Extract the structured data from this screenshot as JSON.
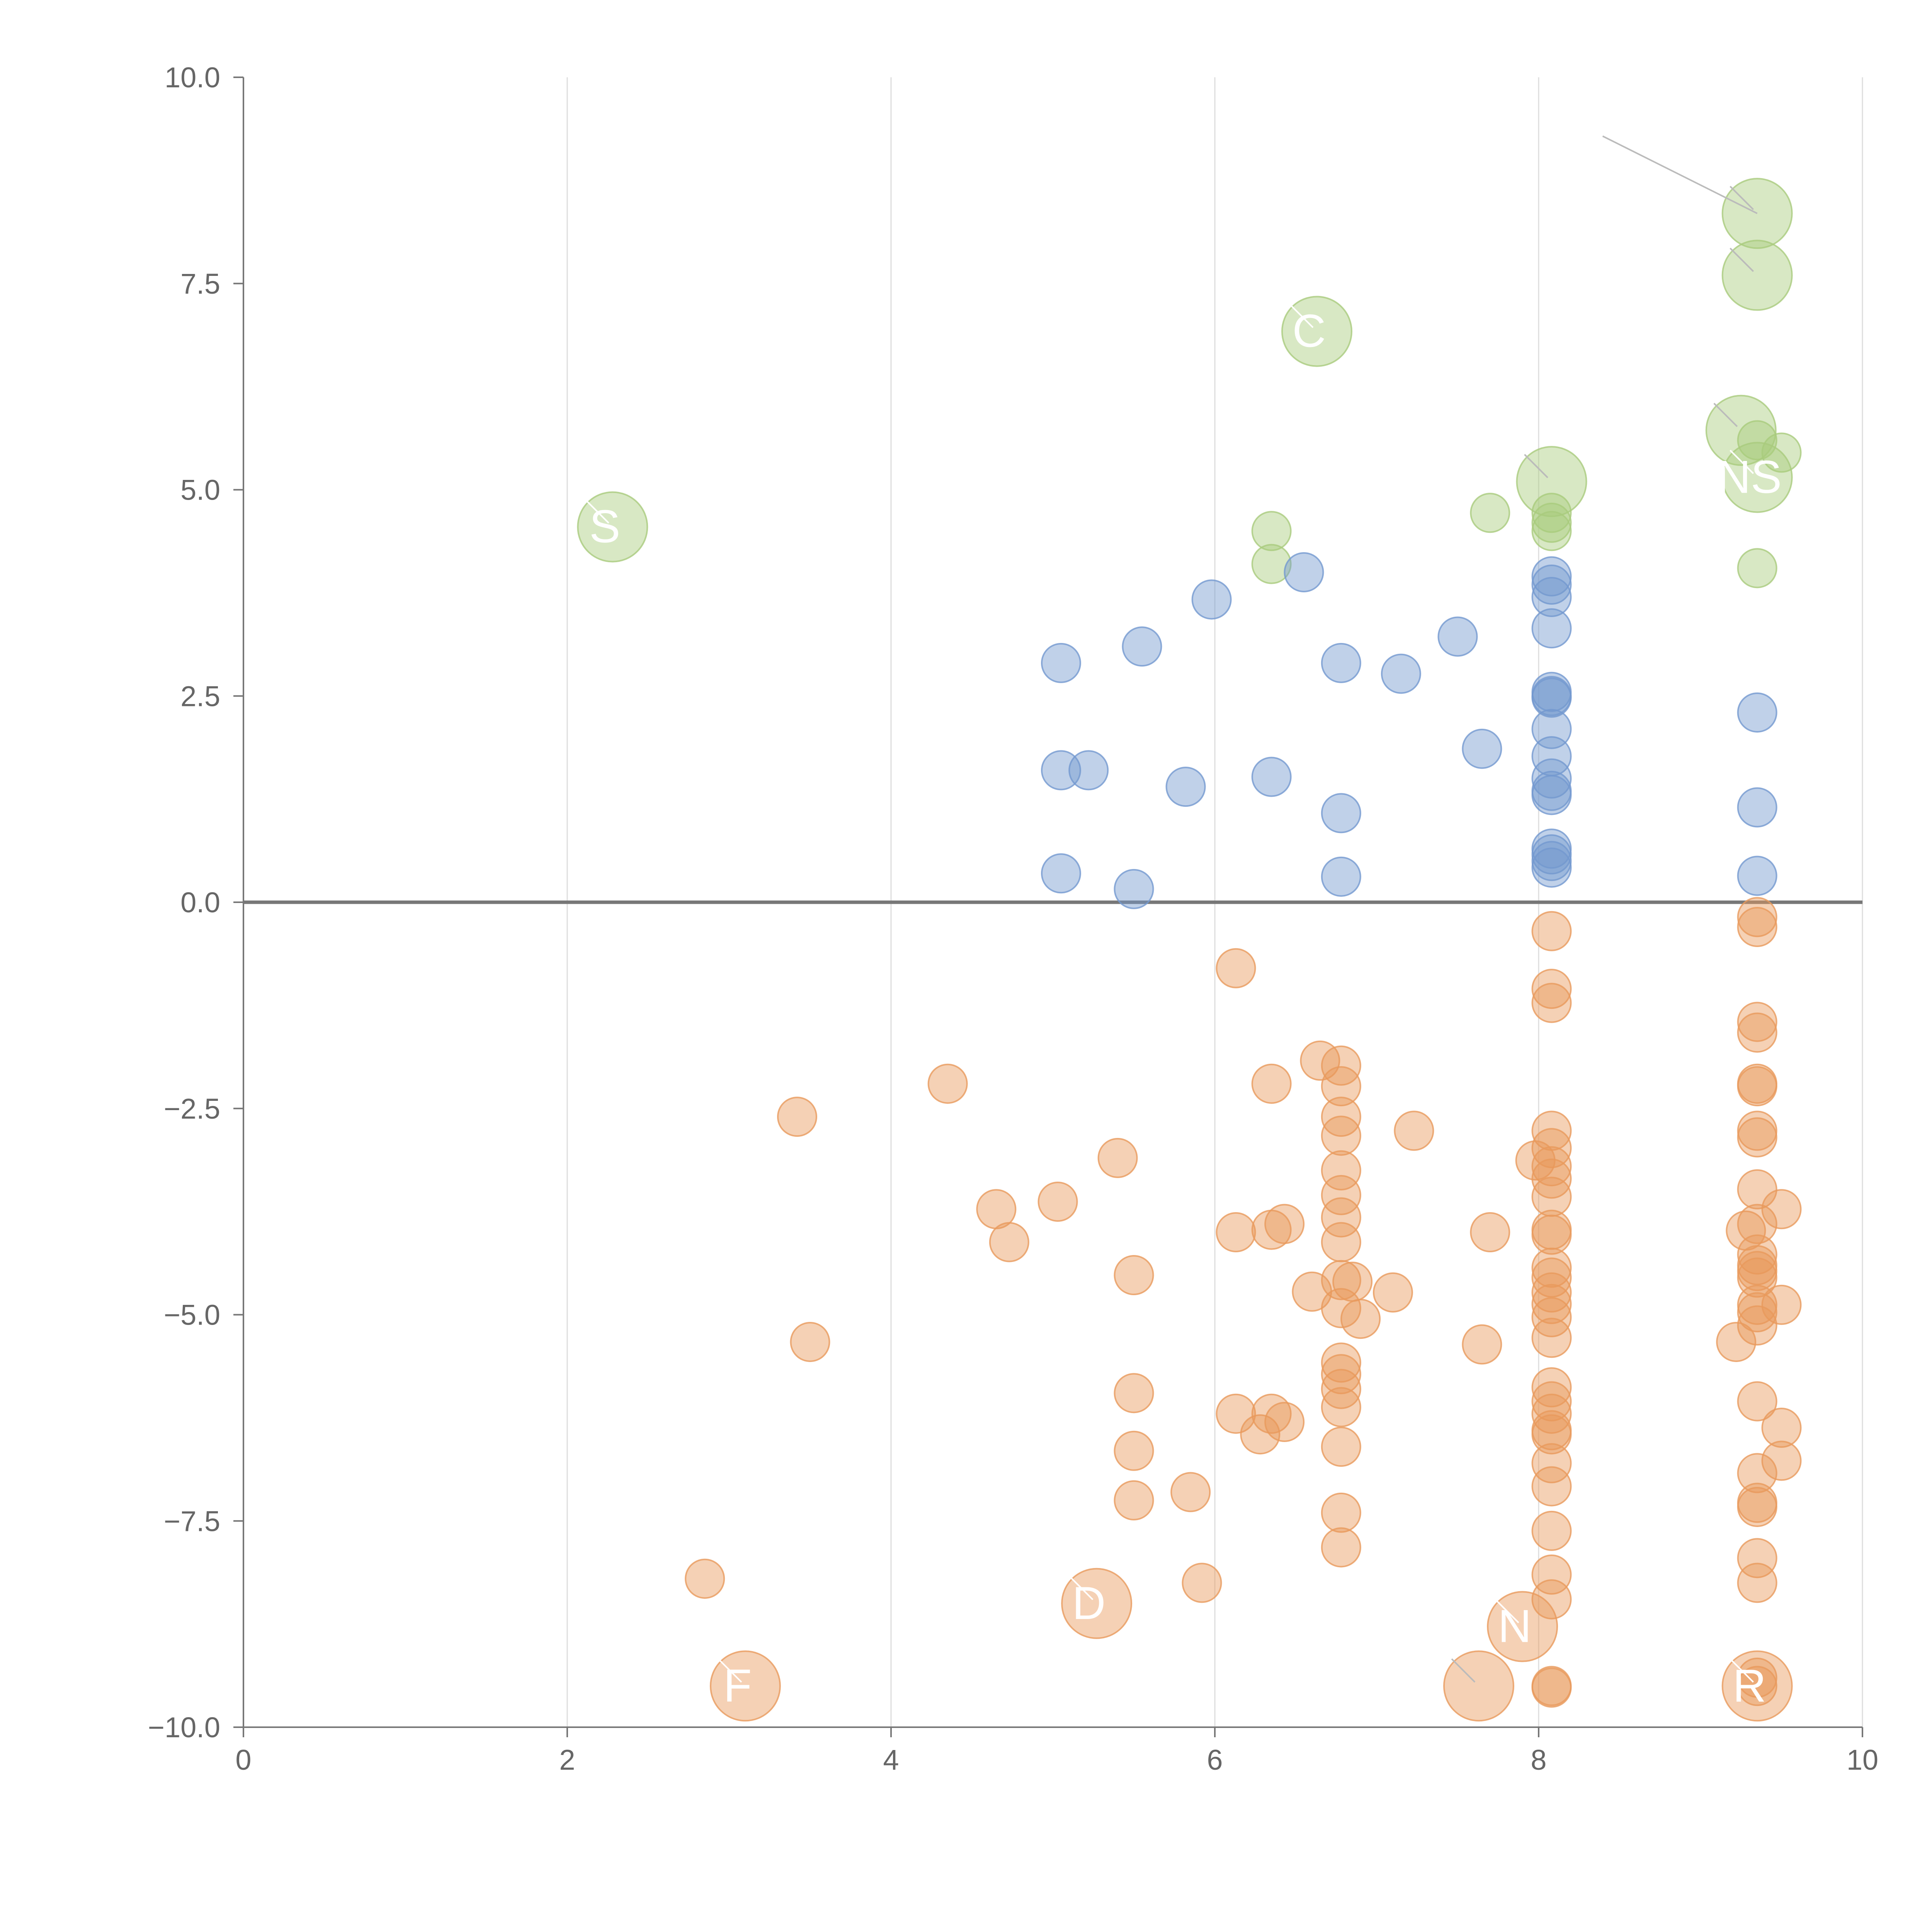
{
  "chart_data": {
    "type": "scatter",
    "title": "",
    "xlabel": "",
    "ylabel": "",
    "xlim": [
      0,
      10
    ],
    "ylim": [
      -10,
      10
    ],
    "x_ticks": [
      "0",
      "2",
      "4",
      "6",
      "8",
      "10"
    ],
    "y_ticks": [
      "10.0",
      "7.5",
      "5.0",
      "2.5",
      "0.0",
      "−2.5",
      "−5.0",
      "−7.5",
      "−10.0"
    ],
    "grid": "vertical",
    "zero_line": true,
    "colors": {
      "green": "#a9cb7d",
      "blue": "#7399cf",
      "orange": "#e99a5c",
      "grid": "#dddddd",
      "axis": "#777777"
    },
    "series": [
      {
        "name": "green",
        "color": "#a9cb7d",
        "points": [
          [
            6.35,
            4.5
          ],
          [
            6.35,
            4.1
          ],
          [
            7.7,
            4.72
          ],
          [
            8.08,
            4.72
          ],
          [
            8.08,
            4.6
          ],
          [
            8.08,
            4.5
          ],
          [
            9.35,
            5.6
          ],
          [
            9.5,
            5.45
          ],
          [
            9.35,
            4.05
          ]
        ]
      },
      {
        "name": "blue",
        "color": "#7399cf",
        "points": [
          [
            5.05,
            2.9
          ],
          [
            5.55,
            3.1
          ],
          [
            5.98,
            3.67
          ],
          [
            6.55,
            4.0
          ],
          [
            6.78,
            2.9
          ],
          [
            7.15,
            2.77
          ],
          [
            7.5,
            3.22
          ],
          [
            7.65,
            1.86
          ],
          [
            5.05,
            1.6
          ],
          [
            5.22,
            1.6
          ],
          [
            5.82,
            1.4
          ],
          [
            6.35,
            1.52
          ],
          [
            6.78,
            1.08
          ],
          [
            5.05,
            0.35
          ],
          [
            5.5,
            0.16
          ],
          [
            6.78,
            0.31
          ],
          [
            8.08,
            3.95
          ],
          [
            8.08,
            3.85
          ],
          [
            8.08,
            3.7
          ],
          [
            8.08,
            3.32
          ],
          [
            8.08,
            2.55
          ],
          [
            8.08,
            2.5
          ],
          [
            8.08,
            2.48
          ],
          [
            8.08,
            2.1
          ],
          [
            8.08,
            1.77
          ],
          [
            8.08,
            1.5
          ],
          [
            8.08,
            1.35
          ],
          [
            8.08,
            1.3
          ],
          [
            8.08,
            0.65
          ],
          [
            8.08,
            0.58
          ],
          [
            8.08,
            0.5
          ],
          [
            8.08,
            0.42
          ],
          [
            9.35,
            2.3
          ],
          [
            9.35,
            1.15
          ],
          [
            9.35,
            0.32
          ]
        ]
      },
      {
        "name": "orange",
        "color": "#e99a5c",
        "points": [
          [
            2.85,
            -8.2
          ],
          [
            3.42,
            -2.6
          ],
          [
            3.5,
            -5.33
          ],
          [
            4.35,
            -2.2
          ],
          [
            4.65,
            -3.72
          ],
          [
            4.73,
            -4.12
          ],
          [
            5.03,
            -3.63
          ],
          [
            5.4,
            -3.1
          ],
          [
            5.5,
            -4.52
          ],
          [
            5.5,
            -5.95
          ],
          [
            5.5,
            -6.65
          ],
          [
            5.5,
            -7.25
          ],
          [
            5.85,
            -7.15
          ],
          [
            5.92,
            -8.25
          ],
          [
            6.13,
            -0.8
          ],
          [
            6.13,
            -4.0
          ],
          [
            6.13,
            -6.2
          ],
          [
            6.28,
            -6.45
          ],
          [
            6.35,
            -2.2
          ],
          [
            6.35,
            -3.97
          ],
          [
            6.35,
            -6.2
          ],
          [
            6.43,
            -6.3
          ],
          [
            6.43,
            -3.9
          ],
          [
            6.6,
            -4.72
          ],
          [
            6.65,
            -1.92
          ],
          [
            6.78,
            -1.98
          ],
          [
            6.78,
            -2.23
          ],
          [
            6.78,
            -2.6
          ],
          [
            6.78,
            -2.83
          ],
          [
            6.78,
            -3.25
          ],
          [
            6.78,
            -3.55
          ],
          [
            6.78,
            -3.82
          ],
          [
            6.78,
            -4.12
          ],
          [
            6.78,
            -4.58
          ],
          [
            6.85,
            -4.6
          ],
          [
            6.78,
            -4.92
          ],
          [
            6.9,
            -5.05
          ],
          [
            6.78,
            -5.58
          ],
          [
            6.78,
            -5.72
          ],
          [
            6.78,
            -5.9
          ],
          [
            6.78,
            -6.12
          ],
          [
            6.78,
            -6.6
          ],
          [
            6.78,
            -7.4
          ],
          [
            6.78,
            -7.82
          ],
          [
            7.1,
            -4.73
          ],
          [
            7.23,
            -2.77
          ],
          [
            7.65,
            -5.36
          ],
          [
            7.7,
            -4.0
          ],
          [
            8.08,
            -0.35
          ],
          [
            8.08,
            -1.05
          ],
          [
            8.08,
            -1.22
          ],
          [
            8.08,
            -2.77
          ],
          [
            8.08,
            -2.98
          ],
          [
            7.98,
            -3.13
          ],
          [
            8.08,
            -3.2
          ],
          [
            8.08,
            -3.35
          ],
          [
            8.08,
            -3.57
          ],
          [
            8.08,
            -3.97
          ],
          [
            8.08,
            -4.03
          ],
          [
            8.08,
            -4.43
          ],
          [
            8.08,
            -4.55
          ],
          [
            8.08,
            -4.73
          ],
          [
            8.08,
            -4.87
          ],
          [
            8.08,
            -5.03
          ],
          [
            8.08,
            -5.28
          ],
          [
            8.08,
            -5.88
          ],
          [
            8.08,
            -6.05
          ],
          [
            8.08,
            -6.2
          ],
          [
            8.08,
            -6.4
          ],
          [
            8.08,
            -6.45
          ],
          [
            8.08,
            -6.8
          ],
          [
            8.08,
            -7.08
          ],
          [
            8.08,
            -7.62
          ],
          [
            8.08,
            -8.15
          ],
          [
            8.08,
            -8.45
          ],
          [
            8.08,
            -9.5
          ],
          [
            8.08,
            -9.52
          ],
          [
            9.35,
            -0.18
          ],
          [
            9.35,
            -0.3
          ],
          [
            9.35,
            -1.45
          ],
          [
            9.35,
            -1.58
          ],
          [
            9.35,
            -2.2
          ],
          [
            9.35,
            -2.23
          ],
          [
            9.35,
            -2.77
          ],
          [
            9.35,
            -2.85
          ],
          [
            9.35,
            -3.48
          ],
          [
            9.28,
            -3.98
          ],
          [
            9.35,
            -3.9
          ],
          [
            9.5,
            -3.72
          ],
          [
            9.35,
            -4.27
          ],
          [
            9.35,
            -4.4
          ],
          [
            9.35,
            -4.47
          ],
          [
            9.35,
            -4.55
          ],
          [
            9.35,
            -4.88
          ],
          [
            9.35,
            -4.97
          ],
          [
            9.5,
            -4.88
          ],
          [
            9.35,
            -5.13
          ],
          [
            9.22,
            -5.33
          ],
          [
            9.35,
            -6.05
          ],
          [
            9.5,
            -6.37
          ],
          [
            9.5,
            -6.77
          ],
          [
            9.35,
            -6.92
          ],
          [
            9.35,
            -7.28
          ],
          [
            9.35,
            -7.33
          ],
          [
            9.35,
            -7.95
          ],
          [
            9.35,
            -8.25
          ],
          [
            9.35,
            -9.4
          ],
          [
            9.35,
            -9.5
          ]
        ]
      }
    ],
    "highlighted": [
      {
        "series": "green",
        "x": 2.28,
        "y": 4.55,
        "label": "S"
      },
      {
        "series": "green",
        "x": 6.63,
        "y": 6.92,
        "label": "C"
      },
      {
        "series": "green",
        "x": 8.08,
        "y": 5.1,
        "label": ""
      },
      {
        "series": "green",
        "x": 9.35,
        "y": 8.35,
        "label": ""
      },
      {
        "series": "green",
        "x": 9.35,
        "y": 7.6,
        "label": ""
      },
      {
        "series": "green",
        "x": 9.25,
        "y": 5.72,
        "label": ""
      },
      {
        "series": "green",
        "x": 9.35,
        "y": 5.15,
        "label": "NS"
      },
      {
        "series": "orange",
        "x": 3.1,
        "y": -9.5,
        "label": "F"
      },
      {
        "series": "orange",
        "x": 5.27,
        "y": -8.5,
        "label": "D"
      },
      {
        "series": "orange",
        "x": 7.63,
        "y": -9.5,
        "label": ""
      },
      {
        "series": "orange",
        "x": 7.9,
        "y": -8.78,
        "label": "N"
      },
      {
        "series": "orange",
        "x": 9.35,
        "y": -9.5,
        "label": "R"
      }
    ]
  }
}
